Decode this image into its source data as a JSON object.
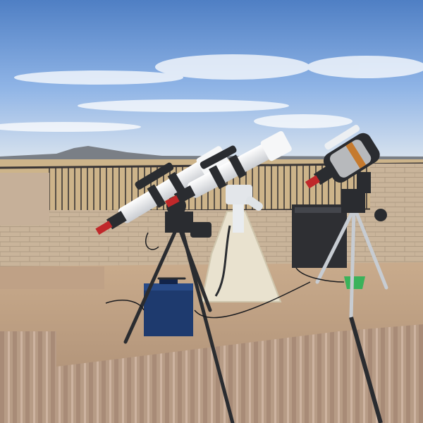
{
  "scene": {
    "subject": "telescopes",
    "colors": {
      "sky_top": "#4f7fc4",
      "sky_mid": "#8fb4e6",
      "sky_horizon": "#d7e2ee",
      "desert": "#cdb48a",
      "mountain": "#7a7f86",
      "wall": "#c9b49a",
      "wall_shadow": "#a8937c",
      "pavers": "#c7a88a",
      "railing": "#3a3636",
      "tube_white": "#eef0f2",
      "mount_dark": "#2a2c30",
      "accent_red": "#c0282a",
      "cover_cream": "#e9e2cf",
      "case_blue": "#1e3a6e",
      "box_dark": "#2e2f33",
      "bucket_green": "#3bb25a"
    }
  }
}
